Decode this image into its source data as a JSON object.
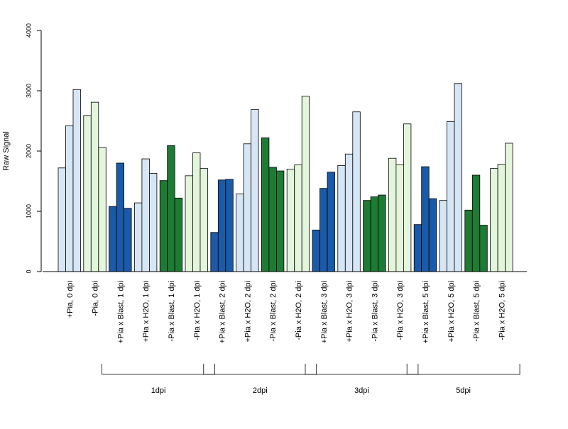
{
  "chart_data": {
    "type": "bar",
    "ylabel": "Raw Signal",
    "ylim": [
      0,
      4000
    ],
    "yticks": [
      0,
      1000,
      2000,
      3000,
      4000
    ],
    "grid": false,
    "legend": "none",
    "colors": {
      "light_blue": "#d6e6f5",
      "dark_blue": "#1a5aa8",
      "light_green": "#e3f6dc",
      "dark_green": "#1e7b34",
      "border": "#000000"
    },
    "categories": [
      {
        "label": "+Pia, 0 dpi",
        "color": "light_blue",
        "values": [
          1720,
          2420,
          3020
        ]
      },
      {
        "label": "-Pia, 0 dpi",
        "color": "light_green",
        "values": [
          2590,
          2810,
          2060
        ]
      },
      {
        "label": "+Pia x Blast, 1 dpi",
        "color": "dark_blue",
        "values": [
          1080,
          1800,
          1050
        ]
      },
      {
        "label": "+Pia x H2O, 1 dpi",
        "color": "light_blue",
        "values": [
          1140,
          1870,
          1630
        ]
      },
      {
        "label": "-Pia x Blast, 1 dpi",
        "color": "dark_green",
        "values": [
          1510,
          2090,
          1220
        ]
      },
      {
        "label": "-Pia x H2O, 1 dpi",
        "color": "light_green",
        "values": [
          1590,
          1970,
          1710
        ]
      },
      {
        "label": "+Pia x Blast, 2 dpi",
        "color": "dark_blue",
        "values": [
          650,
          1520,
          1530
        ]
      },
      {
        "label": "+Pia x H2O, 2 dpi",
        "color": "light_blue",
        "values": [
          1290,
          2120,
          2690
        ]
      },
      {
        "label": "-Pia x Blast, 2 dpi",
        "color": "dark_green",
        "values": [
          2220,
          1730,
          1670
        ]
      },
      {
        "label": "-Pia x H2O, 2 dpi",
        "color": "light_green",
        "values": [
          1700,
          1770,
          2910
        ]
      },
      {
        "label": "+Pia x Blast, 3 dpi",
        "color": "dark_blue",
        "values": [
          690,
          1380,
          1650
        ]
      },
      {
        "label": "+Pia x H2O, 3 dpi",
        "color": "light_blue",
        "values": [
          1760,
          1950,
          2650
        ]
      },
      {
        "label": "-Pia x Blast, 3 dpi",
        "color": "dark_green",
        "values": [
          1180,
          1240,
          1270
        ]
      },
      {
        "label": "-Pia x H2O, 3 dpi",
        "color": "light_green",
        "values": [
          1880,
          1770,
          2450
        ]
      },
      {
        "label": "+Pia x Blast, 5 dpi",
        "color": "dark_blue",
        "values": [
          780,
          1740,
          1210
        ]
      },
      {
        "label": "+Pia x H2O, 5 dpi",
        "color": "light_blue",
        "values": [
          1180,
          2490,
          3120
        ]
      },
      {
        "label": "-Pia x Blast, 5 dpi",
        "color": "dark_green",
        "values": [
          1020,
          1600,
          770
        ]
      },
      {
        "label": "-Pia x H2O, 5 dpi",
        "color": "light_green",
        "values": [
          1710,
          1780,
          2130
        ]
      }
    ],
    "groups": [
      {
        "label": "1dpi",
        "from": 2,
        "to": 5
      },
      {
        "label": "2dpi",
        "from": 6,
        "to": 9
      },
      {
        "label": "3dpi",
        "from": 10,
        "to": 13
      },
      {
        "label": "5dpi",
        "from": 14,
        "to": 17
      }
    ]
  }
}
